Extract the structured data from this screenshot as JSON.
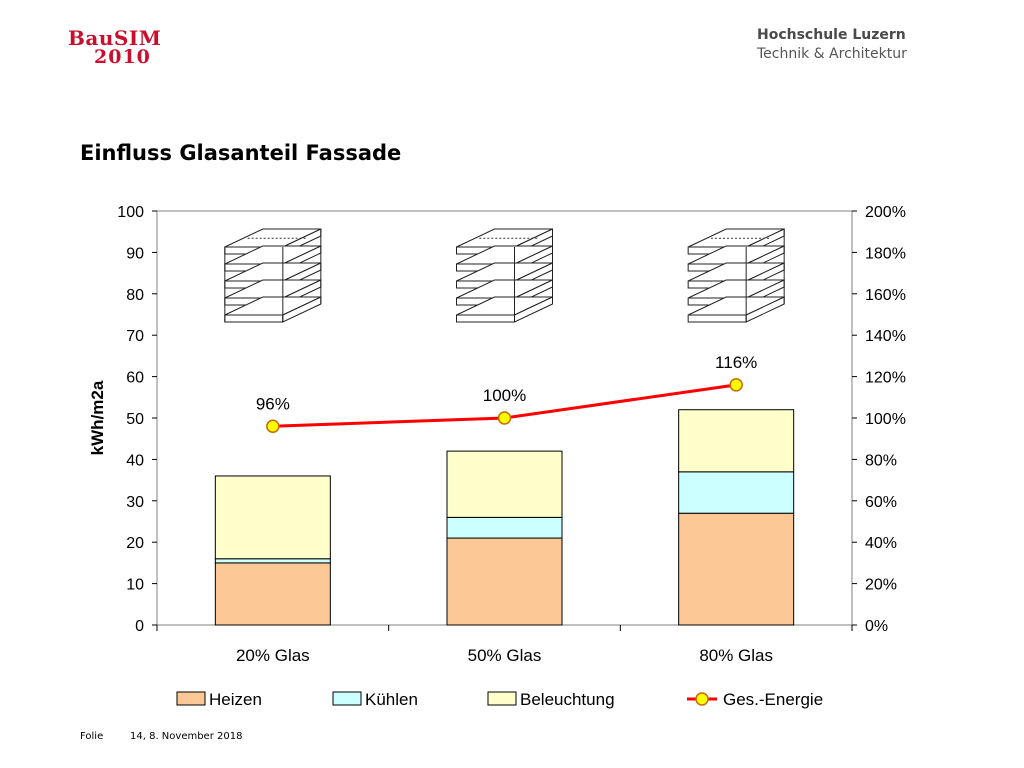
{
  "header": {
    "logo_left_line1": "BauSIM",
    "logo_left_line2": "2010",
    "logo_right_line1": "Hochschule Luzern",
    "logo_right_line2": "Technik & Architektur"
  },
  "slide": {
    "title": "Einfluss Glasanteil Fassade"
  },
  "footer": {
    "label": "Folie",
    "page_date": "14, 8. November 2018"
  },
  "colors": {
    "heizen": "#fcc896",
    "kuehlen": "#ccffff",
    "beleuchtung": "#ffffcc",
    "line": "#ff0000",
    "marker": "#ffff00",
    "marker_edge": "#cc6600"
  },
  "chart_data": {
    "type": "bar",
    "stacked": true,
    "categories": [
      "20% Glas",
      "50% Glas",
      "80% Glas"
    ],
    "series": [
      {
        "name": "Heizen",
        "values": [
          15,
          21,
          27
        ]
      },
      {
        "name": "Kühlen",
        "values": [
          1,
          5,
          10
        ]
      },
      {
        "name": "Beleuchtung",
        "values": [
          20,
          16,
          15
        ]
      }
    ],
    "line_series": {
      "name": "Ges.-Energie",
      "axis": "right",
      "values": [
        96,
        100,
        116
      ],
      "labels": [
        "96%",
        "100%",
        "116%"
      ]
    },
    "ylabel": "kWh/m2a",
    "ylim": [
      0,
      100
    ],
    "yticks": [
      "0",
      "10",
      "20",
      "30",
      "40",
      "50",
      "60",
      "70",
      "80",
      "90",
      "100"
    ],
    "y2lim": [
      0,
      200
    ],
    "y2ticks": [
      "0%",
      "20%",
      "40%",
      "60%",
      "80%",
      "100%",
      "120%",
      "140%",
      "160%",
      "180%",
      "200%"
    ],
    "grid": false,
    "legend_position": "bottom",
    "building_icons": [
      "facade-20-icon",
      "facade-50-icon",
      "facade-80-icon"
    ]
  }
}
